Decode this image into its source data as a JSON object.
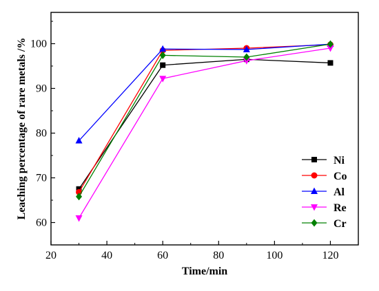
{
  "chart_data": {
    "type": "line",
    "xlabel": "Time/min",
    "ylabel": "Leaching percentage of rare metals /%",
    "xlim": [
      20,
      130
    ],
    "ylim": [
      55,
      107
    ],
    "xticks": [
      20,
      40,
      60,
      80,
      100,
      120
    ],
    "yticks": [
      60,
      70,
      80,
      90,
      100
    ],
    "x": [
      30,
      60,
      90,
      120
    ],
    "grid": false,
    "legend_position": "bottom-right",
    "series": [
      {
        "name": "Ni",
        "color": "#000000",
        "marker": "square",
        "values": [
          67.5,
          95.2,
          96.5,
          95.7
        ]
      },
      {
        "name": "Co",
        "color": "#ff0000",
        "marker": "circle",
        "values": [
          66.8,
          98.5,
          99.0,
          99.8
        ]
      },
      {
        "name": "Al",
        "color": "#0000ff",
        "marker": "triangle-up",
        "values": [
          78.3,
          98.8,
          98.7,
          99.9
        ]
      },
      {
        "name": "Re",
        "color": "#ff00ff",
        "marker": "triangle-down",
        "values": [
          61.0,
          92.2,
          96.2,
          99.0
        ]
      },
      {
        "name": "Cr",
        "color": "#008000",
        "marker": "diamond",
        "values": [
          65.8,
          97.4,
          97.0,
          99.9
        ]
      }
    ]
  }
}
